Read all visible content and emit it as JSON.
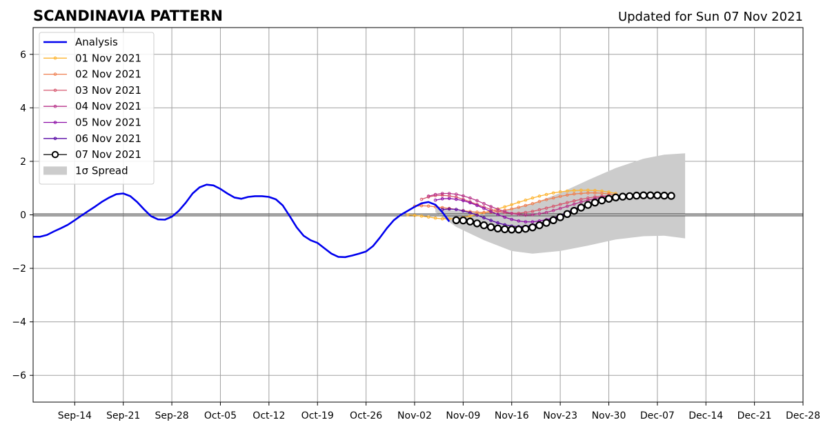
{
  "chart_data": {
    "type": "line",
    "title": "SCANDINAVIA PATTERN",
    "subtitle": "Updated for Sun 07 Nov 2021",
    "xlabel": "",
    "ylabel": "",
    "x_axis": "date",
    "xlim": [
      "2021-09-08",
      "2021-12-28"
    ],
    "ylim": [
      -7,
      7
    ],
    "grid": true,
    "legend_position": "top-left",
    "x_ticks": [
      "Sep-14",
      "Sep-21",
      "Sep-28",
      "Oct-05",
      "Oct-12",
      "Oct-19",
      "Oct-26",
      "Nov-02",
      "Nov-09",
      "Nov-16",
      "Nov-23",
      "Nov-30",
      "Dec-07",
      "Dec-14",
      "Dec-21",
      "Dec-28"
    ],
    "x_tick_dates": [
      "2021-09-14",
      "2021-09-21",
      "2021-09-28",
      "2021-10-05",
      "2021-10-12",
      "2021-10-19",
      "2021-10-26",
      "2021-11-02",
      "2021-11-09",
      "2021-11-16",
      "2021-11-23",
      "2021-11-30",
      "2021-12-07",
      "2021-12-14",
      "2021-12-21",
      "2021-12-28"
    ],
    "y_ticks": [
      -6,
      -4,
      -2,
      0,
      2,
      4,
      6
    ],
    "y_tick_labels": [
      "−6",
      "−4",
      "−2",
      "0",
      "2",
      "4",
      "6"
    ],
    "analysis": {
      "name": "Analysis",
      "color": "#0000ee",
      "points": [
        [
          "2021-09-08",
          -0.82
        ],
        [
          "2021-09-09",
          -0.82
        ],
        [
          "2021-09-10",
          -0.75
        ],
        [
          "2021-09-11",
          -0.62
        ],
        [
          "2021-09-12",
          -0.5
        ],
        [
          "2021-09-13",
          -0.37
        ],
        [
          "2021-09-14",
          -0.2
        ],
        [
          "2021-09-15",
          -0.02
        ],
        [
          "2021-09-16",
          0.15
        ],
        [
          "2021-09-17",
          0.32
        ],
        [
          "2021-09-18",
          0.5
        ],
        [
          "2021-09-19",
          0.65
        ],
        [
          "2021-09-20",
          0.77
        ],
        [
          "2021-09-21",
          0.8
        ],
        [
          "2021-09-22",
          0.7
        ],
        [
          "2021-09-23",
          0.48
        ],
        [
          "2021-09-24",
          0.2
        ],
        [
          "2021-09-25",
          -0.05
        ],
        [
          "2021-09-26",
          -0.17
        ],
        [
          "2021-09-27",
          -0.18
        ],
        [
          "2021-09-28",
          -0.07
        ],
        [
          "2021-09-29",
          0.15
        ],
        [
          "2021-09-30",
          0.45
        ],
        [
          "2021-10-01",
          0.8
        ],
        [
          "2021-10-02",
          1.03
        ],
        [
          "2021-10-03",
          1.13
        ],
        [
          "2021-10-04",
          1.1
        ],
        [
          "2021-10-05",
          0.97
        ],
        [
          "2021-10-06",
          0.8
        ],
        [
          "2021-10-07",
          0.65
        ],
        [
          "2021-10-08",
          0.6
        ],
        [
          "2021-10-09",
          0.67
        ],
        [
          "2021-10-10",
          0.7
        ],
        [
          "2021-10-11",
          0.7
        ],
        [
          "2021-10-12",
          0.67
        ],
        [
          "2021-10-13",
          0.58
        ],
        [
          "2021-10-14",
          0.35
        ],
        [
          "2021-10-15",
          -0.05
        ],
        [
          "2021-10-16",
          -0.47
        ],
        [
          "2021-10-17",
          -0.78
        ],
        [
          "2021-10-18",
          -0.95
        ],
        [
          "2021-10-19",
          -1.05
        ],
        [
          "2021-10-20",
          -1.25
        ],
        [
          "2021-10-21",
          -1.45
        ],
        [
          "2021-10-22",
          -1.57
        ],
        [
          "2021-10-23",
          -1.58
        ],
        [
          "2021-10-24",
          -1.52
        ],
        [
          "2021-10-25",
          -1.45
        ],
        [
          "2021-10-26",
          -1.37
        ],
        [
          "2021-10-27",
          -1.17
        ],
        [
          "2021-10-28",
          -0.85
        ],
        [
          "2021-10-29",
          -0.5
        ],
        [
          "2021-10-30",
          -0.2
        ],
        [
          "2021-10-31",
          0.0
        ],
        [
          "2021-11-01",
          0.15
        ],
        [
          "2021-11-02",
          0.3
        ],
        [
          "2021-11-03",
          0.43
        ],
        [
          "2021-11-04",
          0.48
        ],
        [
          "2021-11-05",
          0.38
        ],
        [
          "2021-11-06",
          0.1
        ],
        [
          "2021-11-07",
          -0.25
        ]
      ]
    },
    "series": [
      {
        "name": "01 Nov 2021",
        "color": "#fdb42f",
        "start": "2021-11-01",
        "values": [
          0.0,
          -0.02,
          -0.05,
          -0.08,
          -0.12,
          -0.15,
          -0.15,
          -0.13,
          -0.1,
          -0.05,
          0.02,
          0.08,
          0.15,
          0.22,
          0.3,
          0.38,
          0.47,
          0.55,
          0.63,
          0.7,
          0.76,
          0.82,
          0.86,
          0.89,
          0.91,
          0.92,
          0.92,
          0.91,
          0.89,
          0.85,
          0.8
        ]
      },
      {
        "name": "02 Nov 2021",
        "color": "#ef7e4f",
        "start": "2021-11-02",
        "values": [
          0.32,
          0.34,
          0.33,
          0.3,
          0.27,
          0.24,
          0.2,
          0.16,
          0.12,
          0.1,
          0.09,
          0.1,
          0.13,
          0.17,
          0.22,
          0.28,
          0.35,
          0.42,
          0.5,
          0.57,
          0.63,
          0.69,
          0.74,
          0.78,
          0.8,
          0.82,
          0.82,
          0.81,
          0.78,
          0.75
        ]
      },
      {
        "name": "03 Nov 2021",
        "color": "#d6556d",
        "start": "2021-11-03",
        "values": [
          0.58,
          0.67,
          0.72,
          0.73,
          0.71,
          0.66,
          0.58,
          0.49,
          0.39,
          0.29,
          0.2,
          0.13,
          0.08,
          0.06,
          0.06,
          0.09,
          0.13,
          0.19,
          0.25,
          0.32,
          0.39,
          0.46,
          0.52,
          0.58,
          0.63,
          0.67,
          0.7,
          0.72
        ]
      },
      {
        "name": "04 Nov 2021",
        "color": "#b83289",
        "start": "2021-11-04",
        "values": [
          0.7,
          0.76,
          0.8,
          0.8,
          0.77,
          0.71,
          0.63,
          0.53,
          0.42,
          0.31,
          0.21,
          0.12,
          0.05,
          0.01,
          -0.01,
          0.0,
          0.04,
          0.09,
          0.16,
          0.24,
          0.32,
          0.4,
          0.48,
          0.55,
          0.61,
          0.66,
          0.7
        ]
      },
      {
        "name": "05 Nov 2021",
        "color": "#8b0aa5",
        "start": "2021-11-05",
        "values": [
          0.55,
          0.6,
          0.61,
          0.58,
          0.53,
          0.45,
          0.35,
          0.24,
          0.12,
          0.01,
          -0.09,
          -0.17,
          -0.23,
          -0.26,
          -0.26,
          -0.23,
          -0.18,
          -0.11,
          -0.02,
          0.08,
          0.18,
          0.28,
          0.38,
          0.46,
          0.54,
          0.6
        ]
      },
      {
        "name": "06 Nov 2021",
        "color": "#5302a3",
        "start": "2021-11-06",
        "values": [
          0.2,
          0.22,
          0.2,
          0.15,
          0.08,
          -0.01,
          -0.11,
          -0.21,
          -0.3,
          -0.37,
          -0.42,
          -0.44,
          -0.43,
          -0.39,
          -0.32,
          -0.23,
          -0.13,
          -0.02,
          0.1,
          0.21,
          0.32,
          0.42,
          0.5,
          0.57,
          0.62
        ]
      },
      {
        "name": "07 Nov 2021",
        "color": "#000000",
        "start": "2021-11-08",
        "values": [
          -0.2,
          -0.21,
          -0.25,
          -0.32,
          -0.39,
          -0.46,
          -0.51,
          -0.54,
          -0.55,
          -0.55,
          -0.52,
          -0.47,
          -0.39,
          -0.3,
          -0.2,
          -0.09,
          0.03,
          0.15,
          0.27,
          0.37,
          0.46,
          0.54,
          0.6,
          0.65,
          0.68,
          0.7,
          0.72,
          0.73,
          0.73,
          0.73,
          0.72,
          0.71
        ]
      }
    ],
    "spread": {
      "name": "1σ Spread",
      "color": "#cccccc",
      "points": [
        [
          "2021-11-05",
          0.25,
          0.1
        ],
        [
          "2021-11-08",
          0.15,
          -0.45
        ],
        [
          "2021-11-12",
          0.08,
          -0.95
        ],
        [
          "2021-11-16",
          0.2,
          -1.35
        ],
        [
          "2021-11-19",
          0.42,
          -1.45
        ],
        [
          "2021-11-23",
          0.82,
          -1.35
        ],
        [
          "2021-11-27",
          1.3,
          -1.15
        ],
        [
          "2021-12-01",
          1.75,
          -0.92
        ],
        [
          "2021-12-05",
          2.1,
          -0.8
        ],
        [
          "2021-12-08",
          2.25,
          -0.78
        ],
        [
          "2021-12-11",
          2.3,
          -0.88
        ]
      ]
    },
    "legend_entries": [
      "Analysis",
      "01 Nov 2021",
      "02 Nov 2021",
      "03 Nov 2021",
      "04 Nov 2021",
      "05 Nov 2021",
      "06 Nov 2021",
      "07 Nov 2021",
      "1σ Spread"
    ]
  }
}
